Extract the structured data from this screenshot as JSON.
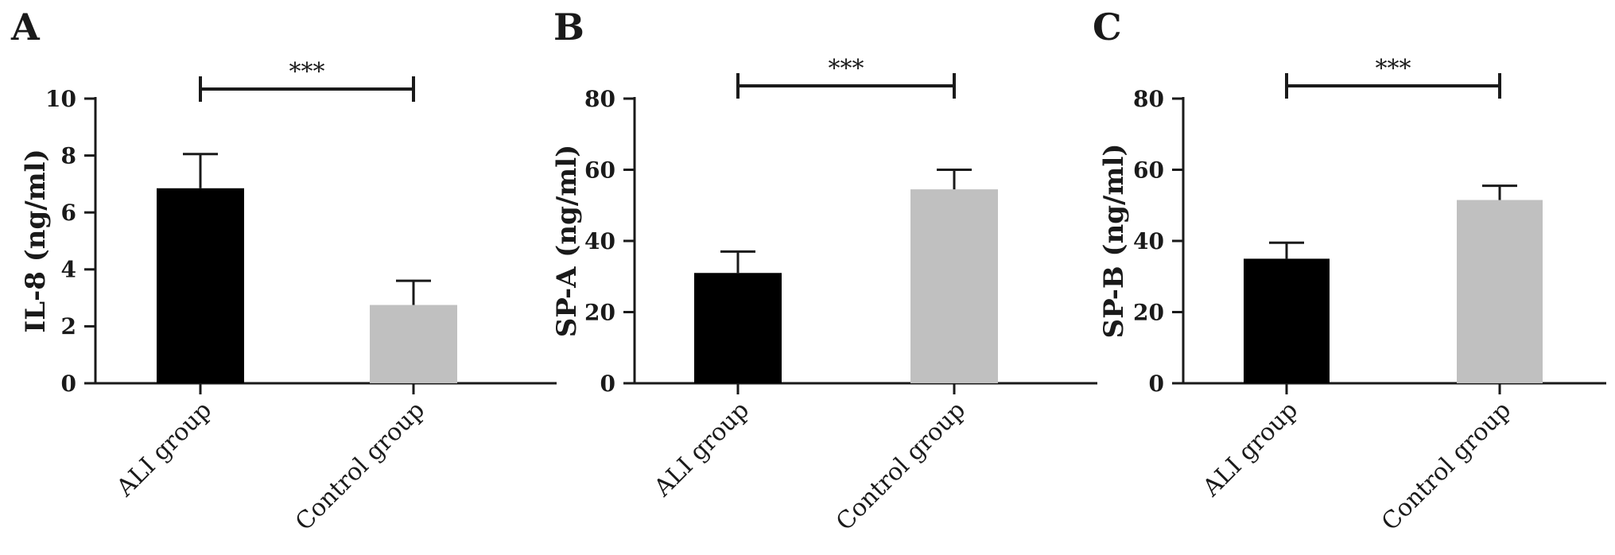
{
  "chart_data": [
    {
      "panel": "A",
      "type": "bar",
      "categories": [
        "ALI group",
        "Control group"
      ],
      "values": [
        6.85,
        2.75
      ],
      "errors": [
        1.2,
        0.85
      ],
      "ylabel": "IL-8 (ng/ml)",
      "ylim": [
        0,
        10
      ],
      "yticks": [
        "0",
        "2",
        "4",
        "6",
        "8",
        "10"
      ],
      "significance": "***",
      "bar_colors": [
        "#000000",
        "#c0c0c0"
      ],
      "grid": false,
      "legend": "none"
    },
    {
      "panel": "B",
      "type": "bar",
      "categories": [
        "ALI group",
        "Control group"
      ],
      "values": [
        31,
        54.5
      ],
      "errors": [
        6,
        5.5
      ],
      "ylabel": "SP-A (ng/ml)",
      "ylim": [
        0,
        80
      ],
      "yticks": [
        "0",
        "20",
        "40",
        "60",
        "80"
      ],
      "significance": "***",
      "bar_colors": [
        "#000000",
        "#c0c0c0"
      ],
      "grid": false,
      "legend": "none"
    },
    {
      "panel": "C",
      "type": "bar",
      "categories": [
        "ALI group",
        "Control group"
      ],
      "values": [
        35,
        51.5
      ],
      "errors": [
        4.5,
        4
      ],
      "ylabel": "SP-B (ng/ml)",
      "ylim": [
        0,
        80
      ],
      "yticks": [
        "0",
        "20",
        "40",
        "60",
        "80"
      ],
      "significance": "***",
      "bar_colors": [
        "#000000",
        "#c0c0c0"
      ],
      "grid": false,
      "legend": "none"
    }
  ]
}
